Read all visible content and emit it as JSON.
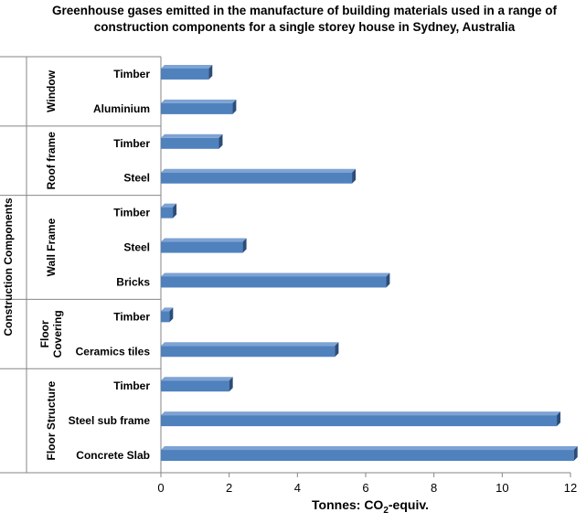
{
  "chart_data": {
    "type": "bar",
    "orientation": "horizontal",
    "style": "3d",
    "title_lines": [
      "Greenhouse gases emitted in the manufacture of building materials used in a range of",
      "construction components for a single storey house in Sydney, Australia"
    ],
    "ylabel": "Construction Components",
    "xlabel_main": "Tonnes: CO",
    "xlabel_sub": "2",
    "xlabel_tail": "-equiv.",
    "xlim": [
      0,
      12
    ],
    "x_ticks": [
      "0",
      "2",
      "4",
      "6",
      "8",
      "10",
      "12"
    ],
    "grid": false,
    "bar_color": "#4f81bd",
    "groups": [
      {
        "name_lines": [
          "Window"
        ],
        "items": [
          {
            "label": "Timber",
            "value": 1.4
          },
          {
            "label": "Aluminium",
            "value": 2.1
          }
        ]
      },
      {
        "name_lines": [
          "Roof frame"
        ],
        "items": [
          {
            "label": "Timber",
            "value": 1.7
          },
          {
            "label": "Steel",
            "value": 5.6
          }
        ]
      },
      {
        "name_lines": [
          "Wall Frame"
        ],
        "items": [
          {
            "label": "Timber",
            "value": 0.35
          },
          {
            "label": "Steel",
            "value": 2.4
          },
          {
            "label": "Bricks",
            "value": 6.6
          }
        ]
      },
      {
        "name_lines": [
          "Floor",
          "Covering"
        ],
        "items": [
          {
            "label": "Timber",
            "value": 0.25
          },
          {
            "label": "Ceramics tiles",
            "value": 5.1
          }
        ]
      },
      {
        "name_lines": [
          "Floor Structure"
        ],
        "items": [
          {
            "label": "Timber",
            "value": 2.0
          },
          {
            "label": "Steel sub frame",
            "value": 11.6
          },
          {
            "label": "Concrete Slab",
            "value": 12.1
          }
        ]
      }
    ]
  }
}
